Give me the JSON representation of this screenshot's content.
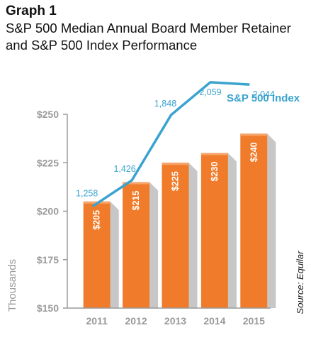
{
  "header": {
    "graph_label": "Graph 1",
    "title": "S&P 500 Median Annual Board Member Retainer and S&P 500 Index Performance"
  },
  "source": "Source: Equilar",
  "colors": {
    "bar": "#f07b2a",
    "bar_top": "#f6a46a",
    "bar_shadow": "#c7c7c7",
    "line": "#3aa3cf",
    "axis": "#9a9a9a"
  },
  "chart_data": {
    "type": "bar",
    "categories": [
      "2011",
      "2012",
      "2013",
      "2014",
      "2015"
    ],
    "ylabel": "Thousands",
    "ylim": [
      150,
      250
    ],
    "yticks": [
      150,
      175,
      200,
      225,
      250
    ],
    "ytick_labels": [
      "$150",
      "$175",
      "$200",
      "$225",
      "$250"
    ],
    "values": [
      205,
      215,
      225,
      230,
      240
    ],
    "value_labels": [
      "$205",
      "$215",
      "$225",
      "$230",
      "$240"
    ],
    "line_series": {
      "name": "S&P 500 Index",
      "values": [
        1258,
        1426,
        1848,
        2059,
        2044
      ],
      "value_labels": [
        "1,258",
        "1,426",
        "1,848",
        "2,059",
        "2,044"
      ]
    }
  }
}
